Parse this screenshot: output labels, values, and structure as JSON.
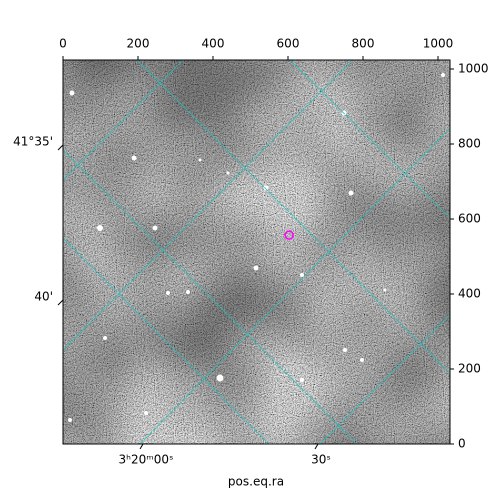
{
  "chart_data": {
    "type": "image",
    "xlabel": "pos.eq.ra",
    "xlim": [
      0,
      1032
    ],
    "xticks": [
      0,
      200,
      400,
      600,
      800,
      1000
    ],
    "ylim": [
      0,
      1024
    ],
    "yticks": [
      0,
      200,
      400,
      600,
      800,
      1000
    ],
    "wcs_left_ticks": [
      "41°35'",
      "40'"
    ],
    "wcs_bottom_ticks": [
      "3ʰ20ᵐ00ˢ",
      "30ˢ"
    ],
    "grid": true,
    "grid_color": "#20c0c0",
    "marker": {
      "x": 603,
      "y": 557,
      "color": "#ff00ff"
    }
  }
}
